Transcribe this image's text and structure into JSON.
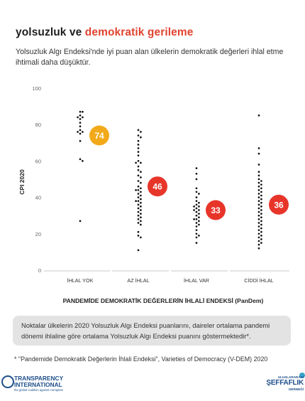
{
  "header": {
    "title_part1": "yolsuzluk ve",
    "title_part2": "demokratik gerileme",
    "subtitle": "Yolsuzluk Algı Endeksi'nde iyi puan alan ülkelerin demokratik değerleri ihlal etme ihtimali daha düşüktür."
  },
  "colors": {
    "accent": "#e0432f",
    "low_violation_circle": "#f2a91a",
    "high_violation_circle": "#e8352a",
    "dots": "#111111",
    "note_bg": "#e3e3e3"
  },
  "chart_data": {
    "type": "scatter",
    "ylabel": "CPI 2020",
    "xlabel": "PANDEMİDE DEMOKRATİK DEĞERLERİN İHLALİ ENDEKSİ (PanDem)",
    "ylim": [
      0,
      100
    ],
    "yticks": [
      0,
      20,
      40,
      60,
      80,
      100
    ],
    "grid": false,
    "categories": [
      "İHLAL YOK",
      "AZ İHLAL",
      "İHLAL VAR",
      "CİDDİ İHLAL"
    ],
    "averages": [
      74,
      46,
      33,
      36
    ],
    "series": [
      {
        "values": [
          87,
          87,
          85,
          84,
          84,
          83,
          81,
          79,
          77,
          76,
          76,
          75,
          71,
          61,
          60,
          27
        ]
      },
      {
        "values": [
          77,
          76,
          74,
          73,
          71,
          69,
          67,
          65,
          63,
          60,
          59,
          59,
          57,
          55,
          54,
          52,
          51,
          49,
          48,
          46,
          45,
          44,
          44,
          43,
          42,
          41,
          40,
          39,
          38,
          38,
          37,
          36,
          35,
          34,
          33,
          32,
          31,
          30,
          29,
          28,
          27,
          26,
          25,
          21,
          19,
          18,
          11
        ]
      },
      {
        "values": [
          56,
          53,
          50,
          45,
          43,
          42,
          40,
          38,
          37,
          36,
          35,
          35,
          34,
          33,
          33,
          32,
          31,
          30,
          29,
          28,
          28,
          27,
          26,
          25,
          24,
          22,
          20,
          19,
          18,
          15
        ]
      },
      {
        "values": [
          85,
          67,
          64,
          58,
          54,
          52,
          50,
          49,
          48,
          47,
          46,
          45,
          44,
          43,
          42,
          41,
          40,
          39,
          38,
          37,
          36,
          35,
          34,
          33,
          32,
          31,
          30,
          29,
          28,
          27,
          26,
          25,
          24,
          23,
          22,
          21,
          20,
          19,
          18,
          17,
          16,
          15,
          14,
          12
        ]
      }
    ]
  },
  "note": "Noktalar ülkelerin 2020 Yolsuzluk Algı Endeksi puanlarını, daireler ortalama pandemi dönemi ihlaline göre ortalama Yolsuzluk Algı Endeksi puanını göstermektedir*.",
  "footnote": "* \"Pandemide Demokratik Değerlerin İhlali Endeksi\", Varieties of Democracy (V-DEM) 2020",
  "logos": {
    "ti_line1": "TRANSPARENCY",
    "ti_line2": "INTERNATIONAL",
    "ti_tagline": "the global coalition against corruption",
    "sd_line1": "ULUSLARARASI",
    "sd_line2": "ŞEFFAFLIK",
    "sd_line3": "DERNEĞİ"
  }
}
